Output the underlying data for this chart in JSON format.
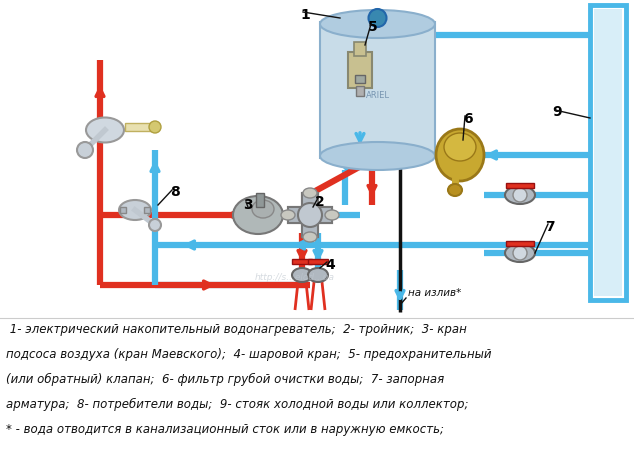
{
  "figsize": [
    6.34,
    4.61
  ],
  "dpi": 100,
  "background_color": "#ffffff",
  "hot": "#e03020",
  "cold": "#4ab8e8",
  "cold_dark": "#2090c8",
  "black": "#111111",
  "silver": "#b0b8c0",
  "gold": "#c8a040",
  "boiler_body": "#c8dce8",
  "boiler_top": "#5090b0",
  "legend_lines": [
    " 1- электрический накопительный водонагреватель;  2- тройник;  3- кран",
    "подсоса воздуха (кран Маевского);  4- шаровой кран;  5- предохранительный",
    "(или обратный) клапан;  6- фильтр грубой очистки воды;  7- запорная",
    "арматура;  8- потребители воды;  9- стояк холодной воды или коллектор;",
    "* - вода отводится в канализационный сток или в наружную емкость;"
  ],
  "na_izliv": "на излив*"
}
